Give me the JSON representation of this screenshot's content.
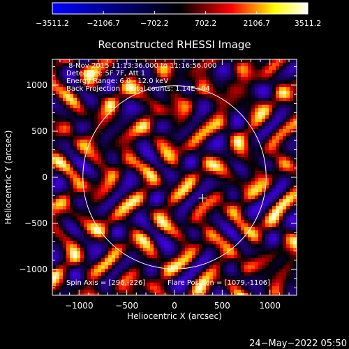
{
  "chart_data": {
    "type": "heatmap",
    "title": "Reconstructed RHESSI Image",
    "xlabel": "Heliocentric X (arcsec)",
    "ylabel": "Heliocentric Y (arcsec)",
    "xlim": [
      -1280,
      1280
    ],
    "ylim": [
      -1280,
      1280
    ],
    "x_ticks": [
      -1000,
      -500,
      0,
      500,
      1000
    ],
    "x_tick_labels": [
      "−1000",
      "−500",
      "0",
      "500",
      "1000"
    ],
    "y_ticks": [
      -1000,
      -500,
      0,
      500,
      1000
    ],
    "y_tick_labels": [
      "−1000",
      "−500",
      "0",
      "500",
      "1000"
    ],
    "colorbar": {
      "min": -3511.2,
      "max": 3511.2,
      "ticks": [
        -3511.2,
        -2106.7,
        -702.2,
        702.2,
        2106.7,
        3511.2
      ],
      "tick_labels": [
        "−3511.2",
        "−2106.7",
        "−702.2",
        "702.2",
        "2106.7",
        "3511.2"
      ],
      "colors": [
        "#0000ff",
        "#000000",
        "#ff0000",
        "#ffff00",
        "#ffffff"
      ]
    },
    "solar_disk": {
      "center": [
        0,
        0
      ],
      "radius": 960,
      "color": "#ffffff"
    },
    "flare_position": [
      296,
      -226
    ],
    "annotations": [
      " 8-Nov-2015 11:13:36.000 to 11:16:56.000",
      "Detectors: 5F 7F, Att 1",
      "Energy Range: 6.0 - 12.0 keV",
      "Back Projection    Total counts: 1.14E+04"
    ],
    "footer_left": "Spin Axis = [296,-226]",
    "footer_right": "Flare Position = [1079,-1106]",
    "grid": false
  },
  "date_stamp": "24−May−2022 05:50"
}
